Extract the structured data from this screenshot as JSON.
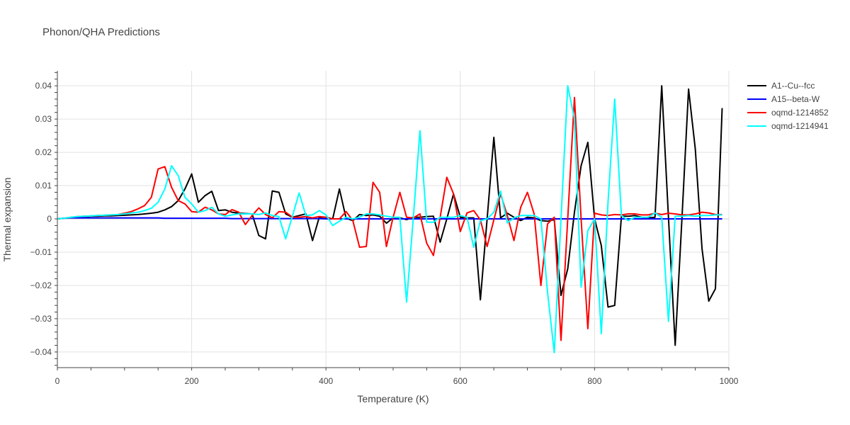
{
  "chart_data": {
    "type": "line",
    "title": "Phonon/QHA Predictions",
    "xlabel": "Temperature (K)",
    "ylabel": "Thermal expansion",
    "xlim": [
      0,
      1000
    ],
    "ylim": [
      -0.0447,
      0.0445
    ],
    "xticks": [
      0,
      200,
      400,
      600,
      800,
      1000
    ],
    "xtick_labels": [
      "0",
      "200",
      "400",
      "600",
      "800",
      "1000"
    ],
    "yticks": [
      -0.04,
      -0.03,
      -0.02,
      -0.01,
      0,
      0.01,
      0.02,
      0.03,
      0.04
    ],
    "ytick_labels": [
      "−0.04",
      "−0.03",
      "−0.02",
      "−0.01",
      "0",
      "0.01",
      "0.02",
      "0.03",
      "0.04"
    ],
    "grid": true,
    "legend_position": "right",
    "x": [
      0,
      10,
      20,
      30,
      40,
      50,
      60,
      70,
      80,
      90,
      100,
      110,
      120,
      130,
      140,
      150,
      160,
      170,
      180,
      190,
      200,
      210,
      220,
      230,
      240,
      250,
      260,
      270,
      280,
      290,
      300,
      310,
      320,
      330,
      340,
      350,
      360,
      370,
      380,
      390,
      400,
      410,
      420,
      430,
      440,
      450,
      460,
      470,
      480,
      490,
      500,
      510,
      520,
      530,
      540,
      550,
      560,
      570,
      580,
      590,
      600,
      610,
      620,
      630,
      640,
      650,
      660,
      670,
      680,
      690,
      700,
      710,
      720,
      730,
      740,
      750,
      760,
      770,
      780,
      790,
      800,
      810,
      820,
      830,
      840,
      850,
      860,
      870,
      880,
      890,
      900,
      910,
      920,
      930,
      940,
      950,
      960,
      970,
      980,
      990
    ],
    "series": [
      {
        "name": "A1--Cu--fcc",
        "color": "#000000",
        "values": [
          0,
          0.0002,
          0.0004,
          0.0006,
          0.0007,
          0.0008,
          0.0008,
          0.0009,
          0.0009,
          0.001,
          0.0011,
          0.0012,
          0.0013,
          0.0015,
          0.0017,
          0.002,
          0.0027,
          0.0037,
          0.0055,
          0.009,
          0.0135,
          0.005,
          0.007,
          0.0083,
          0.0025,
          0.0027,
          0.002,
          0.0017,
          0.0016,
          0.0015,
          -0.005,
          -0.006,
          0.0084,
          0.008,
          0.0015,
          0.0005,
          0.001,
          0.0015,
          -0.0065,
          0.0005,
          0.0005,
          0,
          0.009,
          0.0002,
          -0.0005,
          0.0013,
          0.001,
          0.0012,
          0.0008,
          -0.0013,
          0.0003,
          0.0003,
          -0.0002,
          0.0005,
          0.0005,
          0.0007,
          0.0008,
          -0.007,
          0,
          0.0075,
          0.0005,
          0.0003,
          0.0003,
          -0.0243,
          0,
          0.0245,
          0.0003,
          0.0017,
          0.0005,
          -0.0005,
          0.0005,
          0.0003,
          -0.0005,
          -0.0007,
          -0.0002,
          -0.023,
          -0.015,
          0.002,
          0.016,
          0.023,
          0,
          -0.008,
          -0.0265,
          -0.026,
          0.0008,
          0.0008,
          0.001,
          0.0005,
          0.0003,
          0.0005,
          0.04,
          0.0005,
          -0.038,
          -0.0005,
          0.039,
          0.021,
          -0.009,
          -0.0247,
          -0.021,
          0.0333
        ]
      },
      {
        "name": "A15--beta-W",
        "color": "#0000ff",
        "values": [
          0,
          0.0002,
          0.0003,
          0.0003,
          0.0003,
          0.0003,
          0.0003,
          0.0003,
          0.0003,
          0.0003,
          0.0003,
          0.0003,
          0.0003,
          0.0003,
          0.0003,
          0.0003,
          0.0002,
          0.0002,
          0.0002,
          0.0002,
          0.0002,
          0.0002,
          0.0002,
          0.0002,
          0.0002,
          0.0002,
          0.0001,
          0.0001,
          0.0001,
          0.0001,
          0.0001,
          0.0001,
          0.0001,
          0.0001,
          0.0001,
          0.0001,
          0.0001,
          0.0001,
          0.0001,
          0.0001,
          0,
          0,
          0,
          0,
          0,
          0,
          0,
          0,
          0,
          0,
          0,
          0,
          0,
          0,
          0,
          0,
          0,
          0,
          0,
          0,
          0,
          0,
          0,
          0,
          0,
          0,
          0,
          0,
          0,
          0,
          0,
          0,
          0,
          0,
          0,
          0,
          0,
          0,
          0,
          0,
          0,
          0,
          0,
          0,
          0,
          0,
          0,
          0,
          0,
          0,
          0,
          0,
          0,
          0,
          0,
          0,
          0,
          0,
          0,
          0
        ]
      },
      {
        "name": "oqmd-1214852",
        "color": "#ff0000",
        "values": [
          0,
          0.0002,
          0.0005,
          0.0007,
          0.0008,
          0.0009,
          0.001,
          0.0011,
          0.0012,
          0.0013,
          0.0017,
          0.0022,
          0.003,
          0.004,
          0.0065,
          0.015,
          0.0157,
          0.0095,
          0.0055,
          0.0045,
          0.0022,
          0.002,
          0.0035,
          0.0027,
          0.0015,
          0.0013,
          0.0028,
          0.002,
          -0.0017,
          0.001,
          0.0033,
          0.0013,
          0.0003,
          0.0022,
          0.002,
          0.0005,
          0.0005,
          0.0007,
          0.0003,
          0.0007,
          0.0005,
          0,
          0,
          0.0022,
          -0.0005,
          -0.0085,
          -0.0083,
          0.011,
          0.008,
          -0.0083,
          0.0005,
          0.008,
          0.0005,
          0.0003,
          0.0015,
          -0.0073,
          -0.011,
          0.0005,
          0.0125,
          0.0075,
          -0.0038,
          0.0018,
          0.0025,
          -0.0003,
          -0.0083,
          -0.0003,
          0.0075,
          0.001,
          -0.0065,
          0.0035,
          0.008,
          0.0015,
          -0.02,
          -0.0015,
          0.0005,
          -0.0365,
          0,
          0.0365,
          0,
          -0.033,
          0.0017,
          0.0012,
          0.001,
          0.0013,
          0.0012,
          0.0015,
          0.0015,
          0.0012,
          0.0012,
          0.0017,
          0.0013,
          0.0017,
          0.0015,
          0.0012,
          0.0012,
          0.0015,
          0.002,
          0.0018,
          0.0013,
          0.0013
        ]
      },
      {
        "name": "oqmd-1214941",
        "color": "#00ffff",
        "values": [
          0,
          0.0002,
          0.0005,
          0.0007,
          0.0008,
          0.0009,
          0.001,
          0.0011,
          0.0012,
          0.0013,
          0.0015,
          0.0018,
          0.002,
          0.0025,
          0.0032,
          0.005,
          0.009,
          0.016,
          0.013,
          0.0065,
          0.0045,
          0.002,
          0.0025,
          0.0035,
          0.0015,
          0.0008,
          0.0012,
          0.0015,
          0.0015,
          0.0015,
          0.0013,
          0.0018,
          0.001,
          0.0007,
          -0.006,
          0.0008,
          0.0078,
          0.001,
          0.0012,
          0.0025,
          0.0012,
          -0.002,
          -0.0007,
          0.0005,
          0,
          0.0005,
          0.0015,
          0.0015,
          0.0012,
          0.0008,
          0.0005,
          0.0005,
          -0.025,
          0,
          0.0265,
          -0.001,
          -0.001,
          0.0005,
          0.0005,
          0.0005,
          0.001,
          0.0005,
          -0.0085,
          -0.0005,
          0,
          0.002,
          0.0083,
          -0.0012,
          0.0003,
          0.001,
          0.001,
          0.001,
          0,
          -0.022,
          -0.0402,
          0,
          0.04,
          0.03,
          -0.0205,
          -0.0035,
          0,
          -0.0345,
          0.005,
          0.036,
          0.001,
          -0.0005,
          0.0005,
          0.0005,
          0.0005,
          0.0018,
          0.0005,
          -0.0308,
          0.0008,
          0.0008,
          0.001,
          0.0008,
          0.001,
          0.001,
          0.0012,
          0.0012
        ]
      }
    ]
  }
}
